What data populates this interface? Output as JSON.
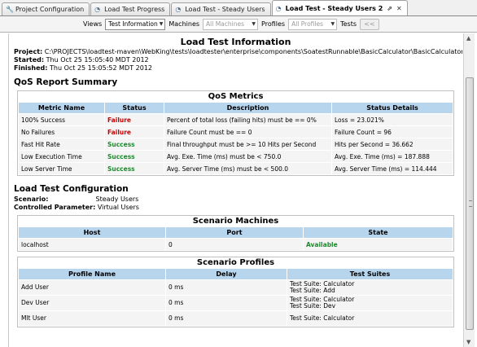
{
  "tabs": [
    {
      "label": "Project Configuration",
      "icon": "wrench-icon"
    },
    {
      "label": "Load Test Progress",
      "icon": "progress-icon"
    },
    {
      "label": "Load Test - Steady Users",
      "icon": "test-icon"
    },
    {
      "label": "Load Test - Steady Users 2",
      "icon": "test-icon",
      "active": true
    }
  ],
  "toolbar": {
    "views_label": "Views",
    "views_value": "Test Information",
    "machines_label": "Machines",
    "machines_value": "All Machines",
    "profiles_label": "Profiles",
    "profiles_value": "All Profiles",
    "tests_label": "Tests",
    "tests_button": "<<"
  },
  "info": {
    "title": "Load Test Information",
    "project_label": "Project:",
    "project_value": "C:\\PROJECTS\\loadtest-maven\\WebKing\\tests\\loadtester\\enterprise\\components\\SoatestRunnable\\BasicCalculator\\BasicCalculator.lt",
    "started_label": "Started:",
    "started_value": "Thu Oct 25 15:05:40 MDT 2012",
    "finished_label": "Finished:",
    "finished_value": "Thu Oct 25 15:05:52 MDT 2012"
  },
  "qos": {
    "section_title": "QoS Report Summary",
    "panel_title": "QoS Metrics",
    "headers": [
      "Metric Name",
      "Status",
      "Description",
      "Status Details"
    ],
    "rows": [
      {
        "metric": "100% Success",
        "status": "Failure",
        "description": "Percent of total loss (failing hits) must be == 0%",
        "details": "Loss = 23.021%"
      },
      {
        "metric": "No Failures",
        "status": "Failure",
        "description": "Failure Count must be == 0",
        "details": "Failure Count = 96"
      },
      {
        "metric": "Fast Hit Rate",
        "status": "Success",
        "description": "Final throughput must be >= 10 Hits per Second",
        "details": "Hits per Second = 36.662"
      },
      {
        "metric": "Low Execution Time",
        "status": "Success",
        "description": "Avg. Exe. Time (ms) must be < 750.0",
        "details": "Avg. Exe. Time (ms) = 187.888"
      },
      {
        "metric": "Low Server Time",
        "status": "Success",
        "description": "Avg. Server Time (ms) must be < 500.0",
        "details": "Avg. Server Time (ms) = 114.444"
      }
    ]
  },
  "config": {
    "section_title": "Load Test Configuration",
    "scenario_label": "Scenario:",
    "scenario_value": "Steady Users",
    "controlled_label": "Controlled Parameter:",
    "controlled_value": "Virtual Users",
    "machines_title": "Scenario Machines",
    "machines_headers": [
      "Host",
      "Port",
      "State"
    ],
    "machines_rows": [
      {
        "host": "localhost",
        "port": "0",
        "state": "Available"
      }
    ],
    "profiles_title": "Scenario Profiles",
    "profiles_headers": [
      "Profile Name",
      "Delay",
      "Test Suites"
    ],
    "profiles_rows": [
      {
        "name": "Add User",
        "delay": "0 ms",
        "suite1": "Test Suite: Calculator",
        "suite2": "Test Suite: Add"
      },
      {
        "name": "Dev User",
        "delay": "0 ms",
        "suite1": "Test Suite: Calculator",
        "suite2": "Test Suite: Dev"
      },
      {
        "name": "Mlt User",
        "delay": "0 ms",
        "suite1": "Test Suite: Calculator",
        "suite2": ""
      }
    ]
  }
}
